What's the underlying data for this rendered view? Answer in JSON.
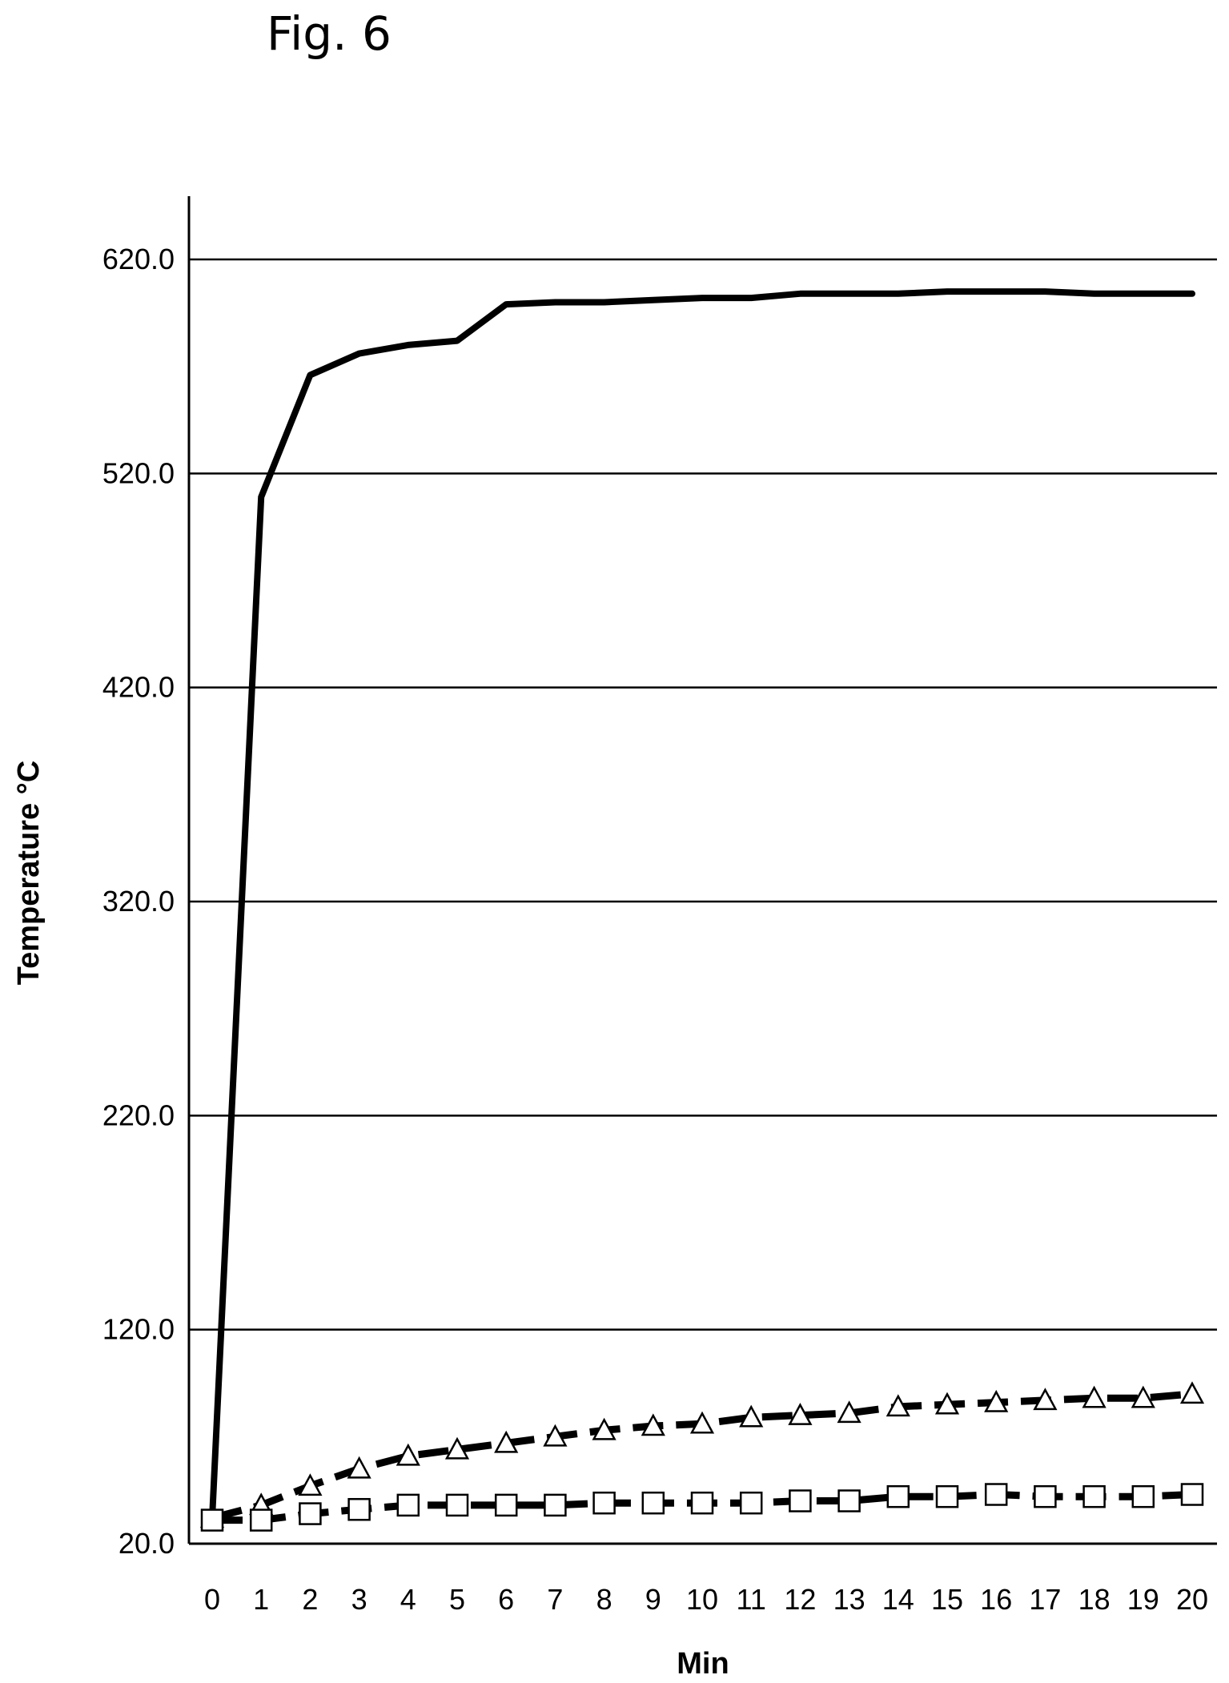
{
  "figure": {
    "title": "Fig. 6"
  },
  "chart_data": {
    "type": "line",
    "xlabel": "Min",
    "ylabel": "Temperature °C",
    "x": [
      0,
      1,
      2,
      3,
      4,
      5,
      6,
      7,
      8,
      9,
      10,
      11,
      12,
      13,
      14,
      15,
      16,
      17,
      18,
      19,
      20
    ],
    "xticks": [
      "0",
      "1",
      "2",
      "3",
      "4",
      "5",
      "6",
      "7",
      "8",
      "9",
      "10",
      "11",
      "12",
      "13",
      "14",
      "15",
      "16",
      "17",
      "18",
      "19",
      "20"
    ],
    "yticks": [
      "20.0",
      "120.0",
      "220.0",
      "320.0",
      "420.0",
      "520.0",
      "620.0"
    ],
    "ylim": [
      20,
      650
    ],
    "grid": "horizontal",
    "series": [
      {
        "marker": "none",
        "line": "solid",
        "values": [
          32,
          509,
          566,
          576,
          580,
          582,
          599,
          600,
          600,
          601,
          602,
          602,
          604,
          604,
          604,
          605,
          605,
          605,
          604,
          604,
          604
        ]
      },
      {
        "marker": "triangle",
        "line": "dashed",
        "values": [
          32,
          38,
          47,
          55,
          61,
          64,
          67,
          70,
          73,
          75,
          76,
          79,
          80,
          81,
          84,
          85,
          86,
          87,
          88,
          88,
          90
        ]
      },
      {
        "marker": "square",
        "line": "dashed",
        "values": [
          31,
          31,
          34,
          36,
          38,
          38,
          38,
          38,
          39,
          39,
          39,
          39,
          40,
          40,
          42,
          42,
          43,
          42,
          42,
          42,
          43
        ]
      }
    ]
  }
}
